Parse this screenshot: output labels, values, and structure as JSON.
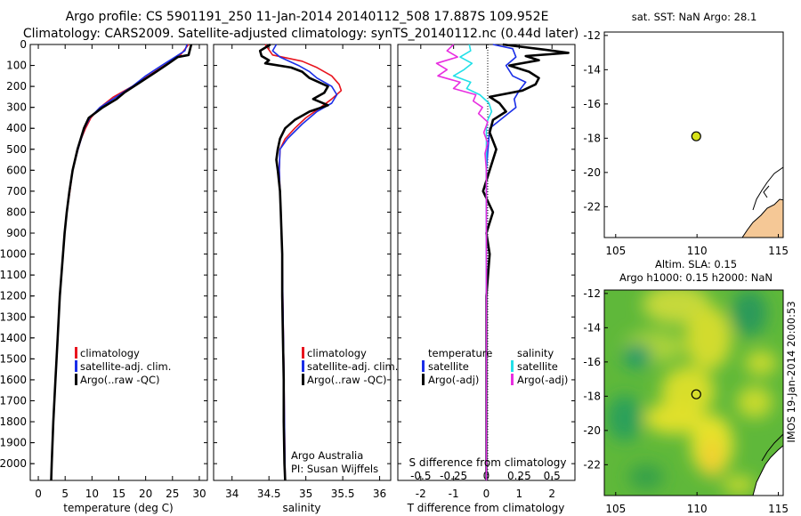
{
  "header": {
    "line1": "Argo profile: CS 5901191_250 11-Jan-2014 20140112_508 17.887S 109.952E",
    "line2": "Climatology: CARS2009. Satellite-adjusted climatology: synTS_20140112.nc (0.44d later)"
  },
  "watermark": "IMOS 19-Jan-2014 20:00:53",
  "colors": {
    "climatology": "#e8141e",
    "satellite": "#1a2ee8",
    "argo": "#000000",
    "t_satellite": "#1a2ee8",
    "s_satellite": "#22e0e8",
    "s_argo": "#e82ee0",
    "land": "#f5c896",
    "float_marker": "#d7e21a"
  },
  "chart_data": [
    {
      "id": "temperature",
      "type": "line",
      "xlabel": "temperature (deg C)",
      "xlim": [
        -1.5,
        31.5
      ],
      "xticks": [
        0,
        5,
        10,
        15,
        20,
        25,
        30
      ],
      "ylim": [
        2080,
        0
      ],
      "yticks": [
        0,
        100,
        200,
        300,
        400,
        500,
        600,
        700,
        800,
        900,
        1000,
        1100,
        1200,
        1300,
        1400,
        1500,
        1600,
        1700,
        1800,
        1900,
        2000
      ],
      "legend": [
        "climatology",
        "satellite-adj. clim.",
        "Argo(..raw -QC)"
      ],
      "series": [
        {
          "name": "climatology",
          "color_key": "climatology",
          "depth": [
            0,
            50,
            100,
            150,
            200,
            250,
            300,
            350,
            400,
            450,
            500,
            600,
            700,
            800,
            900,
            1000,
            1200,
            1400,
            1600,
            1800,
            2000,
            2080
          ],
          "values": [
            28.0,
            26.5,
            23.5,
            20.5,
            17.5,
            14.0,
            11.5,
            9.8,
            8.8,
            8.0,
            7.4,
            6.4,
            5.9,
            5.3,
            4.9,
            4.6,
            4.0,
            3.6,
            3.2,
            2.8,
            2.5,
            2.4
          ]
        },
        {
          "name": "satellite-adj. clim.",
          "color_key": "satellite",
          "depth": [
            0,
            30,
            60,
            100,
            150,
            200,
            250,
            300,
            350,
            400,
            500,
            600,
            700,
            800,
            900,
            1000,
            1200,
            1400,
            1600,
            1800,
            2000,
            2080
          ],
          "values": [
            27.7,
            27.3,
            25.5,
            23.0,
            20.0,
            17.5,
            14.5,
            11.5,
            9.6,
            8.6,
            7.4,
            6.4,
            5.8,
            5.3,
            4.9,
            4.6,
            4.0,
            3.6,
            3.2,
            2.8,
            2.5,
            2.4
          ]
        },
        {
          "name": "Argo(..raw -QC)",
          "color_key": "argo",
          "depth": [
            0,
            20,
            50,
            60,
            90,
            130,
            180,
            230,
            260,
            300,
            350,
            400,
            500,
            600,
            700,
            800,
            900,
            1000,
            1200,
            1400,
            1600,
            1800,
            2000,
            2080
          ],
          "values": [
            28.5,
            28.3,
            28.0,
            26.0,
            24.3,
            22.0,
            19.0,
            16.0,
            14.6,
            12.0,
            9.4,
            8.5,
            7.3,
            6.4,
            5.8,
            5.3,
            4.9,
            4.6,
            4.0,
            3.6,
            3.2,
            2.8,
            2.5,
            2.4
          ]
        }
      ]
    },
    {
      "id": "salinity",
      "type": "line",
      "xlabel": "salinity",
      "xlim": [
        33.75,
        36.15
      ],
      "xticks": [
        34,
        34.5,
        35,
        35.5,
        36
      ],
      "ylim": [
        2080,
        0
      ],
      "legend": [
        "climatology",
        "satellite-adj. clim.",
        "Argo(..raw -QC)"
      ],
      "annotations": [
        "Argo Australia",
        "PI: Susan Wijffels"
      ],
      "series": [
        {
          "name": "climatology",
          "color_key": "climatology",
          "depth": [
            0,
            50,
            80,
            110,
            150,
            190,
            220,
            260,
            300,
            350,
            400,
            450,
            500,
            600,
            800,
            1000,
            1500,
            2080
          ],
          "values": [
            34.45,
            34.55,
            34.95,
            35.15,
            35.35,
            35.45,
            35.48,
            35.35,
            35.2,
            35.0,
            34.85,
            34.72,
            34.65,
            34.64,
            34.66,
            34.68,
            34.7,
            34.72
          ]
        },
        {
          "name": "satellite-adj. clim.",
          "color_key": "satellite",
          "depth": [
            0,
            30,
            60,
            100,
            130,
            160,
            200,
            240,
            280,
            320,
            380,
            450,
            500,
            600,
            800,
            1000,
            1500,
            2080
          ],
          "values": [
            34.6,
            34.55,
            34.65,
            34.9,
            35.05,
            35.15,
            35.35,
            35.42,
            35.35,
            35.15,
            34.95,
            34.75,
            34.65,
            34.64,
            34.66,
            34.68,
            34.7,
            34.72
          ]
        },
        {
          "name": "Argo(..raw -QC)",
          "color_key": "argo",
          "depth": [
            0,
            30,
            55,
            75,
            90,
            110,
            130,
            160,
            200,
            230,
            260,
            290,
            320,
            360,
            400,
            450,
            500,
            550,
            600,
            700,
            800,
            1000,
            1200,
            1400,
            1600,
            1800,
            2000,
            2080
          ],
          "values": [
            34.52,
            34.38,
            34.4,
            34.5,
            34.45,
            34.8,
            34.95,
            35.05,
            35.3,
            35.25,
            35.1,
            35.3,
            35.05,
            34.85,
            34.72,
            34.65,
            34.62,
            34.6,
            34.62,
            34.65,
            34.66,
            34.68,
            34.68,
            34.69,
            34.7,
            34.7,
            34.71,
            34.72
          ]
        }
      ]
    },
    {
      "id": "differences",
      "type": "line",
      "xlabel": "T difference from climatology",
      "xlim": [
        -2.7,
        2.7
      ],
      "xticks": [
        -2,
        -1,
        0,
        1,
        2
      ],
      "top_xlabel": "S difference from climatology",
      "top_xticks": [
        -0.5,
        -0.25,
        0,
        0.25,
        0.5
      ],
      "ylim": [
        2080,
        0
      ],
      "legend_titles": [
        "temperature",
        "salinity"
      ],
      "legend": [
        "satellite",
        "Argo(-adj)",
        "satellite",
        "Argo(-adj)"
      ],
      "series": [
        {
          "name": "satellite",
          "quantity": "temperature",
          "color_key": "t_satellite",
          "depth": [
            0,
            20,
            60,
            100,
            150,
            180,
            220,
            260,
            300,
            400,
            500,
            600,
            800,
            1000,
            1200,
            1500,
            1800,
            2080
          ],
          "values": [
            0.2,
            0.8,
            0.9,
            0.6,
            0.8,
            1.2,
            1.0,
            0.85,
            0.9,
            0.1,
            0.05,
            0.0,
            0.0,
            0.0,
            0.0,
            0.0,
            0.0,
            0.0
          ]
        },
        {
          "name": "Argo(-adj)",
          "quantity": "temperature",
          "color_key": "argo",
          "depth": [
            0,
            25,
            40,
            55,
            75,
            100,
            130,
            160,
            190,
            220,
            250,
            280,
            320,
            360,
            420,
            500,
            600,
            700,
            800,
            900,
            1000,
            1200,
            1500,
            1800,
            2080
          ],
          "values": [
            0.5,
            1.8,
            2.5,
            1.2,
            1.6,
            0.7,
            1.3,
            1.6,
            1.5,
            1.1,
            0.1,
            0.4,
            0.6,
            0.2,
            0.1,
            0.3,
            0.1,
            -0.1,
            0.2,
            0.0,
            0.1,
            0.0,
            0.0,
            0.0,
            0.0
          ]
        },
        {
          "name": "satellite",
          "quantity": "salinity",
          "color_key": "s_satellite",
          "depth": [
            0,
            30,
            60,
            90,
            120,
            150,
            180,
            210,
            240,
            280,
            320,
            360,
            400,
            500,
            600,
            800,
            1000,
            1500,
            2080
          ],
          "values": [
            -0.13,
            -0.12,
            -0.2,
            -0.11,
            -0.17,
            -0.25,
            -0.12,
            -0.15,
            -0.05,
            0.02,
            0.04,
            0.01,
            0.0,
            0.0,
            0.0,
            0.0,
            0.0,
            0.0,
            0.0
          ]
        },
        {
          "name": "Argo(-adj)",
          "quantity": "salinity",
          "color_key": "s_argo",
          "depth": [
            0,
            30,
            60,
            90,
            120,
            150,
            180,
            210,
            240,
            270,
            300,
            330,
            370,
            420,
            470,
            520,
            600,
            700,
            800,
            900,
            1000,
            1200,
            1500,
            1800,
            2080
          ],
          "values": [
            -0.25,
            -0.3,
            -0.22,
            -0.38,
            -0.3,
            -0.37,
            -0.2,
            -0.25,
            -0.08,
            -0.1,
            -0.03,
            -0.06,
            0.01,
            -0.02,
            0.01,
            -0.01,
            0.0,
            0.0,
            0.0,
            0.0,
            0.0,
            0.0,
            0.0,
            0.0,
            0.0
          ]
        }
      ]
    },
    {
      "id": "sst_map",
      "type": "scatter",
      "title": "sat. SST: NaN Argo: 28.1",
      "xlim": [
        104.3,
        115.3
      ],
      "xticks": [
        105,
        110,
        115
      ],
      "ylim": [
        -23.8,
        -11.8
      ],
      "yticks": [
        -12,
        -14,
        -16,
        -18,
        -20,
        -22
      ],
      "points": [
        {
          "lon": 109.952,
          "lat": -17.887
        }
      ]
    },
    {
      "id": "sla_map",
      "type": "heatmap",
      "title_line1": "Altim. SLA: 0.15",
      "title_line2": "Argo h1000: 0.15 h2000: NaN",
      "xlim": [
        104.3,
        115.3
      ],
      "xticks": [
        105,
        110,
        115
      ],
      "ylim": [
        -23.8,
        -11.8
      ],
      "yticks": [
        -12,
        -14,
        -16,
        -18,
        -20,
        -22
      ],
      "points": [
        {
          "lon": 109.952,
          "lat": -17.887
        }
      ]
    }
  ]
}
